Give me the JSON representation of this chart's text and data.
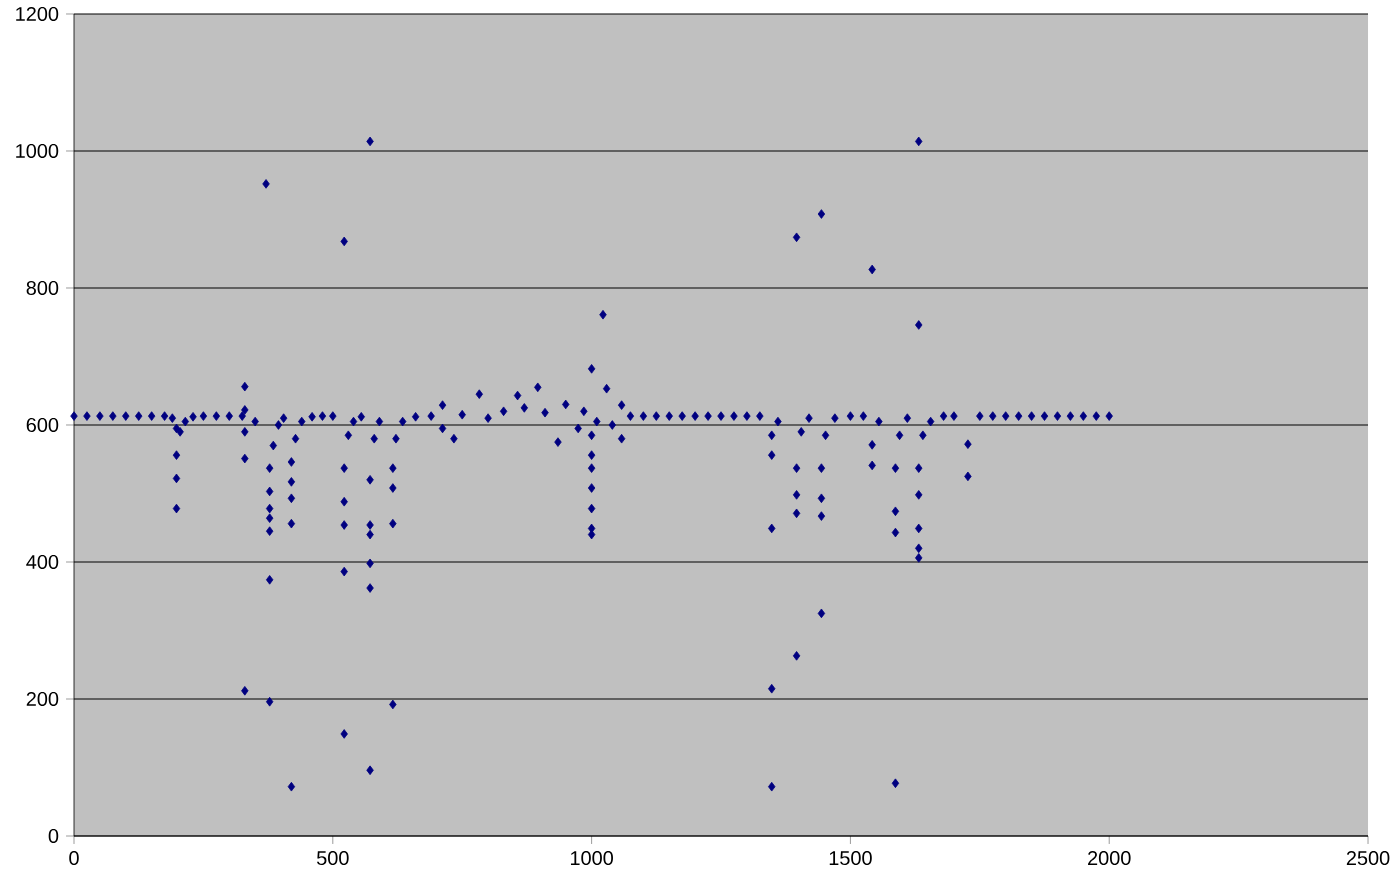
{
  "chart_data": {
    "type": "scatter",
    "marker": "diamond",
    "grid": "y",
    "xlim": [
      0,
      2500
    ],
    "xticks": [
      0,
      500,
      1000,
      1500,
      2000,
      2500
    ],
    "ylim": [
      0,
      1200
    ],
    "yticks": [
      0,
      200,
      400,
      600,
      800,
      1000,
      1200
    ],
    "series": [
      {
        "color": "#000080",
        "x": [
          0,
          25,
          50,
          75,
          100,
          125,
          150,
          175,
          190,
          198,
          198,
          198,
          198,
          205,
          215,
          230,
          250,
          275,
          300,
          325,
          330,
          330,
          330,
          330,
          330,
          350,
          371,
          378,
          378,
          378,
          378,
          378,
          378,
          378,
          385,
          395,
          405,
          420,
          420,
          420,
          420,
          420,
          428,
          440,
          460,
          480,
          500,
          522,
          522,
          522,
          522,
          522,
          522,
          530,
          540,
          555,
          572,
          572,
          572,
          572,
          572,
          572,
          572,
          580,
          590,
          616,
          616,
          616,
          616,
          622,
          635,
          660,
          690,
          712,
          712,
          734,
          750,
          783,
          800,
          830,
          857,
          870,
          896,
          910,
          935,
          950,
          974,
          985,
          1000,
          1000,
          1000,
          1000,
          1000,
          1000,
          1000,
          1000,
          1010,
          1022,
          1029,
          1040,
          1058,
          1058,
          1075,
          1100,
          1125,
          1150,
          1175,
          1200,
          1225,
          1250,
          1275,
          1300,
          1325,
          1348,
          1348,
          1348,
          1348,
          1348,
          1360,
          1396,
          1396,
          1396,
          1396,
          1396,
          1405,
          1420,
          1444,
          1444,
          1444,
          1444,
          1444,
          1452,
          1470,
          1500,
          1525,
          1542,
          1542,
          1542,
          1555,
          1587,
          1587,
          1587,
          1587,
          1595,
          1610,
          1632,
          1632,
          1632,
          1632,
          1632,
          1632,
          1632,
          1640,
          1655,
          1680,
          1700,
          1727,
          1727,
          1750,
          1775,
          1800,
          1825,
          1850,
          1875,
          1900,
          1925,
          1950,
          1975,
          2000
        ],
        "values": [
          613,
          613,
          613,
          613,
          613,
          613,
          613,
          613,
          610,
          595,
          556,
          522,
          478,
          590,
          605,
          612,
          613,
          613,
          613,
          613,
          656,
          622,
          590,
          551,
          212,
          605,
          952,
          537,
          503,
          478,
          464,
          445,
          374,
          196,
          570,
          600,
          610,
          546,
          517,
          493,
          456,
          72,
          580,
          605,
          612,
          613,
          613,
          868,
          537,
          488,
          454,
          386,
          149,
          585,
          605,
          612,
          1014,
          520,
          454,
          440,
          398,
          362,
          96,
          580,
          605,
          192,
          537,
          508,
          456,
          580,
          605,
          612,
          613,
          629,
          595,
          580,
          615,
          645,
          610,
          620,
          643,
          625,
          655,
          618,
          575,
          630,
          595,
          620,
          682,
          585,
          556,
          537,
          508,
          478,
          449,
          440,
          605,
          761,
          653,
          600,
          629,
          580,
          613,
          613,
          613,
          613,
          613,
          613,
          613,
          613,
          613,
          613,
          613,
          72,
          215,
          449,
          556,
          585,
          605,
          874,
          263,
          471,
          498,
          537,
          590,
          610,
          908,
          325,
          467,
          493,
          537,
          585,
          610,
          613,
          613,
          827,
          541,
          571,
          605,
          77,
          443,
          474,
          537,
          585,
          610,
          1014,
          746,
          406,
          420,
          449,
          498,
          537,
          585,
          605,
          613,
          613,
          572,
          525,
          613,
          613,
          613,
          613,
          613,
          613,
          613,
          613,
          613,
          613,
          613
        ]
      }
    ]
  }
}
